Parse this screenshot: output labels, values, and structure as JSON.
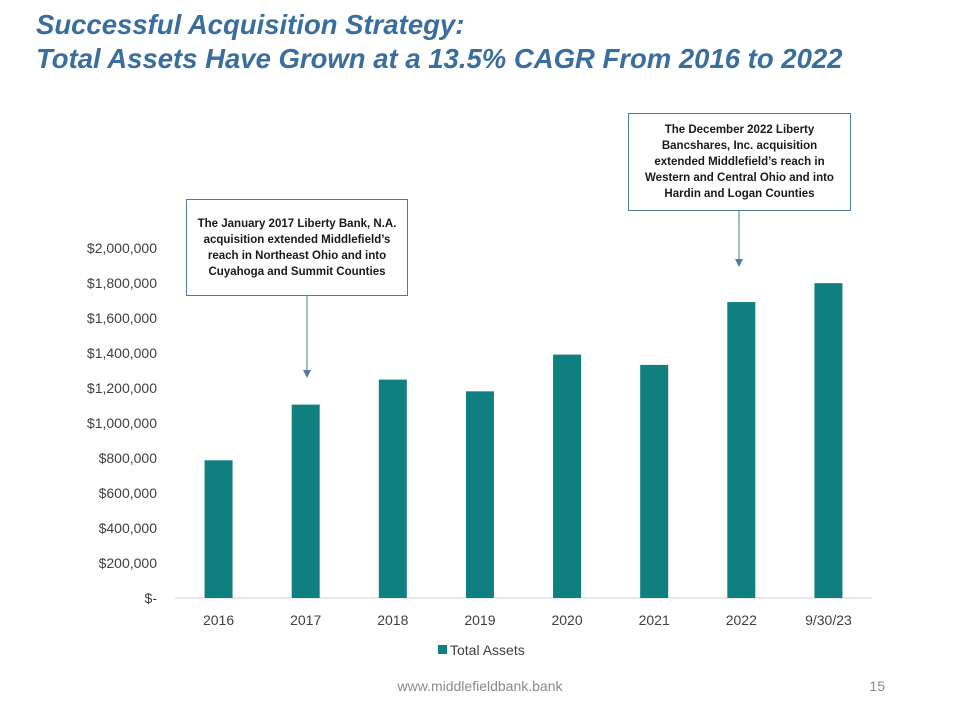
{
  "slide": {
    "title_line1": "Successful Acquisition Strategy:",
    "title_line2": "Total Assets Have Grown at a 13.5% CAGR From 2016 to 2022",
    "footer_url": "www.middlefieldbank.bank",
    "page_number": "15"
  },
  "callouts": {
    "acq_2017": "The January 2017 Liberty Bank, N.A. acquisition extended Middlefield’s reach in Northeast Ohio and into Cuyahoga and Summit Counties",
    "acq_2022": "The December 2022 Liberty Bancshares, Inc. acquisition extended Middlefield’s reach in Western and Central Ohio and into Hardin and Logan Counties"
  },
  "colors": {
    "bar": "#0f7f7f",
    "title": "#3a6e9f",
    "callout_border": "#4a7aa6",
    "arrow": "#4a7aa6"
  },
  "chart_data": {
    "type": "bar",
    "title": "",
    "xlabel": "",
    "ylabel": "",
    "categories": [
      "2016",
      "2017",
      "2018",
      "2019",
      "2020",
      "2021",
      "2022",
      "9/30/23"
    ],
    "series": [
      {
        "name": "Total Assets",
        "values": [
          787000,
          1105000,
          1248000,
          1181000,
          1391000,
          1332000,
          1691000,
          1799000
        ]
      }
    ],
    "ylim": [
      0,
      2000000
    ],
    "yticks": [
      0,
      200000,
      400000,
      600000,
      800000,
      1000000,
      1200000,
      1400000,
      1600000,
      1800000,
      2000000
    ],
    "ytick_labels": [
      "$-",
      "$200,000",
      "$400,000",
      "$600,000",
      "$800,000",
      "$1,000,000",
      "$1,200,000",
      "$1,400,000",
      "$1,600,000",
      "$1,800,000",
      "$2,000,000"
    ],
    "grid": false,
    "legend_position": "bottom"
  }
}
